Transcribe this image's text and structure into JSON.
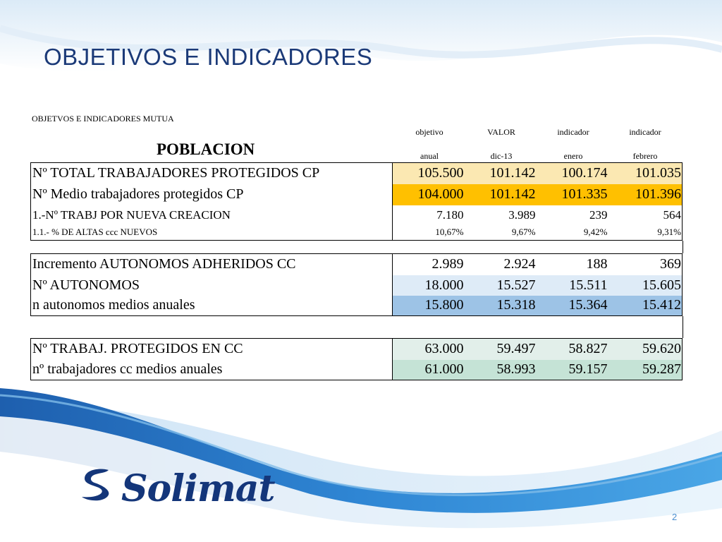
{
  "title": "OBJETIVOS E INDICADORES",
  "subtitle": "OBJETVOS E INDICADORES MUTUA",
  "section_label": "POBLACION",
  "column_headers": [
    {
      "line1": "objetivo",
      "line2": "anual"
    },
    {
      "line1": "VALOR",
      "line2": "dic-13"
    },
    {
      "line1": "indicador",
      "line2": "enero"
    },
    {
      "line1": "indicador",
      "line2": "febrero"
    }
  ],
  "group1": [
    {
      "label": "Nº TOTAL TRABAJADORES PROTEGIDOS CP",
      "values": [
        "105.500",
        "101.142",
        "100.174",
        "101.035"
      ],
      "highlight": "#fbe8b2"
    },
    {
      "label": "Nº Medio trabajadores protegidos CP",
      "values": [
        "104.000",
        "101.142",
        "101.335",
        "101.396"
      ],
      "highlight": "#ffc000"
    },
    {
      "label": "1.-Nº TRABJ POR NUEVA CREACION",
      "values": [
        "7.180",
        "3.989",
        "239",
        "564"
      ],
      "highlight": ""
    },
    {
      "label": "1.1.- % DE ALTAS ccc NUEVOS",
      "values": [
        "10,67%",
        "9,67%",
        "9,42%",
        "9,31%"
      ],
      "highlight": ""
    }
  ],
  "group2": [
    {
      "label": "Incremento AUTONOMOS ADHERIDOS CC",
      "values": [
        "2.989",
        "2.924",
        "188",
        "369"
      ],
      "highlight": ""
    },
    {
      "label": "Nº AUTONOMOS",
      "values": [
        "18.000",
        "15.527",
        "15.511",
        "15.605"
      ],
      "highlight": "#deebf7"
    },
    {
      "label": "n autonomos medios anuales",
      "values": [
        "15.800",
        "15.318",
        "15.364",
        "15.412"
      ],
      "highlight": "#9dc3e6"
    }
  ],
  "group3": [
    {
      "label": "Nº TRABAJ. PROTEGIDOS EN CC",
      "values": [
        "63.000",
        "59.497",
        "58.827",
        "59.620"
      ],
      "highlight": "#e2efea"
    },
    {
      "label": "nº trabajadores cc medios anuales",
      "values": [
        "61.000",
        "58.993",
        "59.157",
        "59.287"
      ],
      "highlight": "#c5e3d6"
    }
  ],
  "logo": {
    "text": "Solimat",
    "icon": "solimat-s-logo-icon"
  },
  "page_number": "2",
  "colors": {
    "title": "#1b3a78",
    "wave_dark": "#1d5fb0",
    "wave_light": "#8fc3ec",
    "logo": "#14367a"
  }
}
